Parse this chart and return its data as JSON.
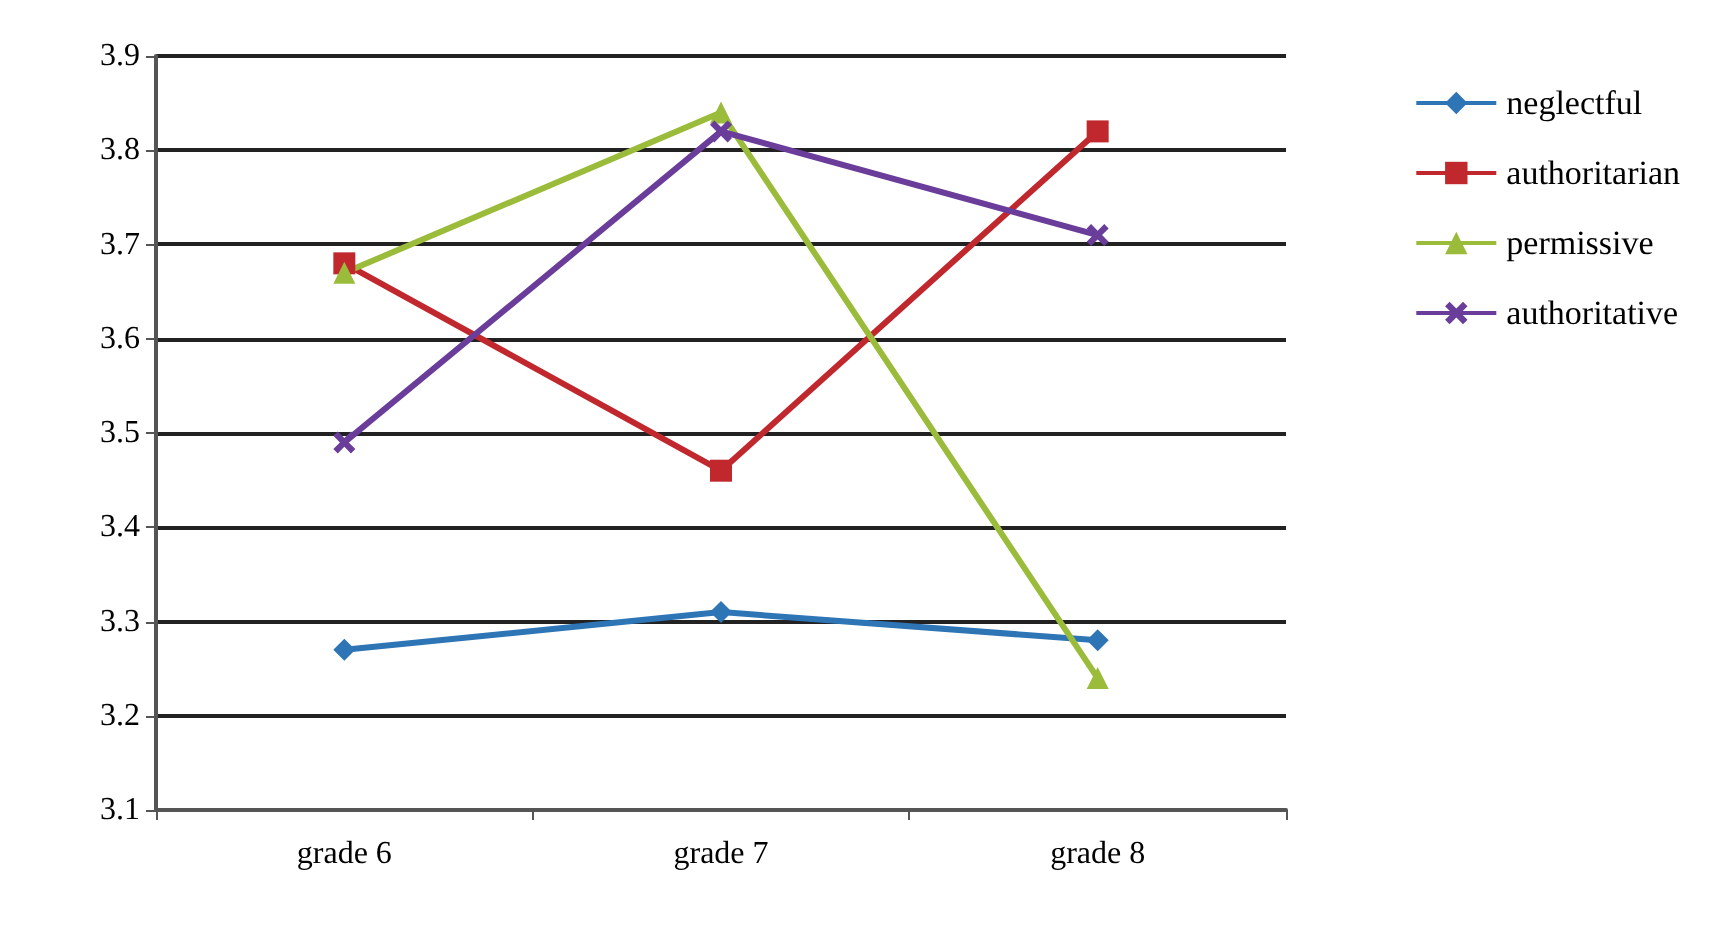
{
  "chart_data": {
    "type": "line",
    "categories": [
      "grade 6",
      "grade 7",
      "grade 8"
    ],
    "series": [
      {
        "name": "neglectful",
        "color": "#2e75b6",
        "marker": "diamond",
        "values": [
          3.27,
          3.31,
          3.28
        ]
      },
      {
        "name": "authoritarian",
        "color": "#c0282d",
        "marker": "square",
        "values": [
          3.68,
          3.46,
          3.82
        ]
      },
      {
        "name": "permissive",
        "color": "#9bbb3b",
        "marker": "triangle",
        "values": [
          3.67,
          3.84,
          3.24
        ]
      },
      {
        "name": "authoritative",
        "color": "#6a3d9a",
        "marker": "cross",
        "values": [
          3.49,
          3.82,
          3.71
        ]
      }
    ],
    "ylim": [
      3.1,
      3.9
    ],
    "yticks": [
      3.1,
      3.2,
      3.3,
      3.4,
      3.5,
      3.6,
      3.7,
      3.8,
      3.9
    ],
    "grid": "y",
    "legend": "right",
    "line_style": "solid"
  }
}
